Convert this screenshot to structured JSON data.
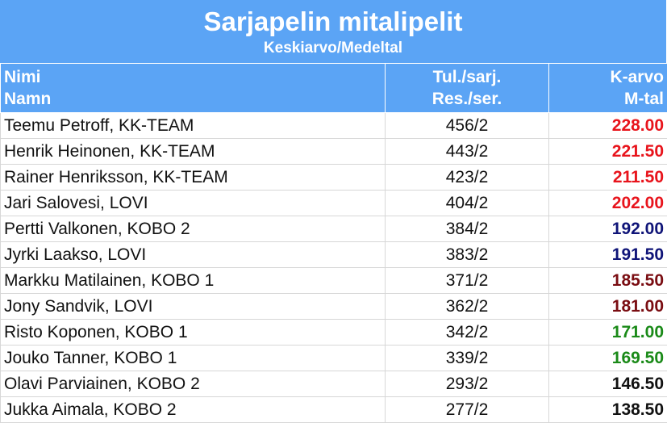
{
  "header": {
    "title": "Sarjapelin mitalipelit",
    "subtitle": "Keskiarvo/Medeltal"
  },
  "columns": {
    "name_fi": "Nimi",
    "name_sv": "Namn",
    "result_fi": "Tul./sarj.",
    "result_sv": "Res./ser.",
    "avg_fi": "K-arvo",
    "avg_sv": "M-tal"
  },
  "colors": {
    "header_bg": "#5ba4f5",
    "red": "#e8141c",
    "navy": "#0f1478",
    "maroon": "#7a0d12",
    "green": "#1a8a18",
    "black": "#111111"
  },
  "rows": [
    {
      "name": "Teemu Petroff, KK-TEAM",
      "result": "456/2",
      "avg": "228.00",
      "color": "#e8141c"
    },
    {
      "name": "Henrik Heinonen, KK-TEAM",
      "result": "443/2",
      "avg": "221.50",
      "color": "#e8141c"
    },
    {
      "name": "Rainer Henriksson, KK-TEAM",
      "result": "423/2",
      "avg": "211.50",
      "color": "#e8141c"
    },
    {
      "name": "Jari Salovesi, LOVI",
      "result": "404/2",
      "avg": "202.00",
      "color": "#e8141c"
    },
    {
      "name": "Pertti Valkonen, KOBO 2",
      "result": "384/2",
      "avg": "192.00",
      "color": "#0f1478"
    },
    {
      "name": "Jyrki Laakso, LOVI",
      "result": "383/2",
      "avg": "191.50",
      "color": "#0f1478"
    },
    {
      "name": "Markku Matilainen, KOBO 1",
      "result": "371/2",
      "avg": "185.50",
      "color": "#7a0d12"
    },
    {
      "name": "Jony Sandvik, LOVI",
      "result": "362/2",
      "avg": "181.00",
      "color": "#7a0d12"
    },
    {
      "name": "Risto Koponen, KOBO 1",
      "result": "342/2",
      "avg": "171.00",
      "color": "#1a8a18"
    },
    {
      "name": "Jouko Tanner, KOBO 1",
      "result": "339/2",
      "avg": "169.50",
      "color": "#1a8a18"
    },
    {
      "name": "Olavi Parviainen, KOBO 2",
      "result": "293/2",
      "avg": "146.50",
      "color": "#111111"
    },
    {
      "name": "Jukka Aimala, KOBO 2",
      "result": "277/2",
      "avg": "138.50",
      "color": "#111111"
    }
  ]
}
